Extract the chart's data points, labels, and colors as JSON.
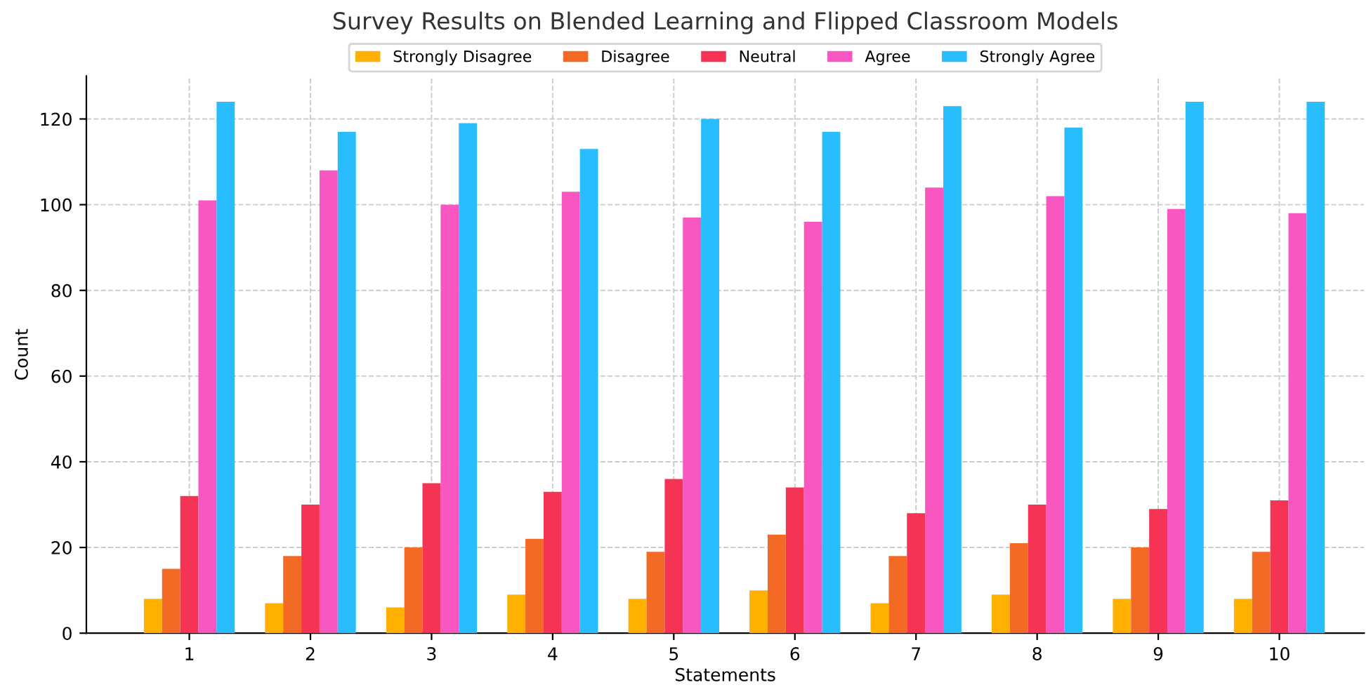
{
  "chart_data": {
    "type": "bar",
    "title": "Survey Results on Blended Learning and Flipped Classroom Models",
    "xlabel": "Statements",
    "ylabel": "Count",
    "categories": [
      "1",
      "2",
      "3",
      "4",
      "5",
      "6",
      "7",
      "8",
      "9",
      "10"
    ],
    "series": [
      {
        "name": "Strongly Disagree",
        "color": "#ffb000",
        "values": [
          8,
          7,
          6,
          9,
          8,
          10,
          7,
          9,
          8,
          8
        ]
      },
      {
        "name": "Disagree",
        "color": "#f26a24",
        "values": [
          15,
          18,
          20,
          22,
          19,
          23,
          18,
          21,
          20,
          19
        ]
      },
      {
        "name": "Neutral",
        "color": "#f53455",
        "values": [
          32,
          30,
          35,
          33,
          36,
          34,
          28,
          30,
          29,
          31
        ]
      },
      {
        "name": "Agree",
        "color": "#f857c1",
        "values": [
          101,
          108,
          100,
          103,
          97,
          96,
          104,
          102,
          99,
          98
        ]
      },
      {
        "name": "Strongly Agree",
        "color": "#29bdfd",
        "values": [
          124,
          117,
          119,
          113,
          120,
          117,
          123,
          118,
          124,
          124
        ]
      }
    ],
    "ylim": [
      0,
      130
    ],
    "yticks": [
      0,
      20,
      40,
      60,
      80,
      100,
      120
    ],
    "grid": true,
    "legend": "top"
  }
}
